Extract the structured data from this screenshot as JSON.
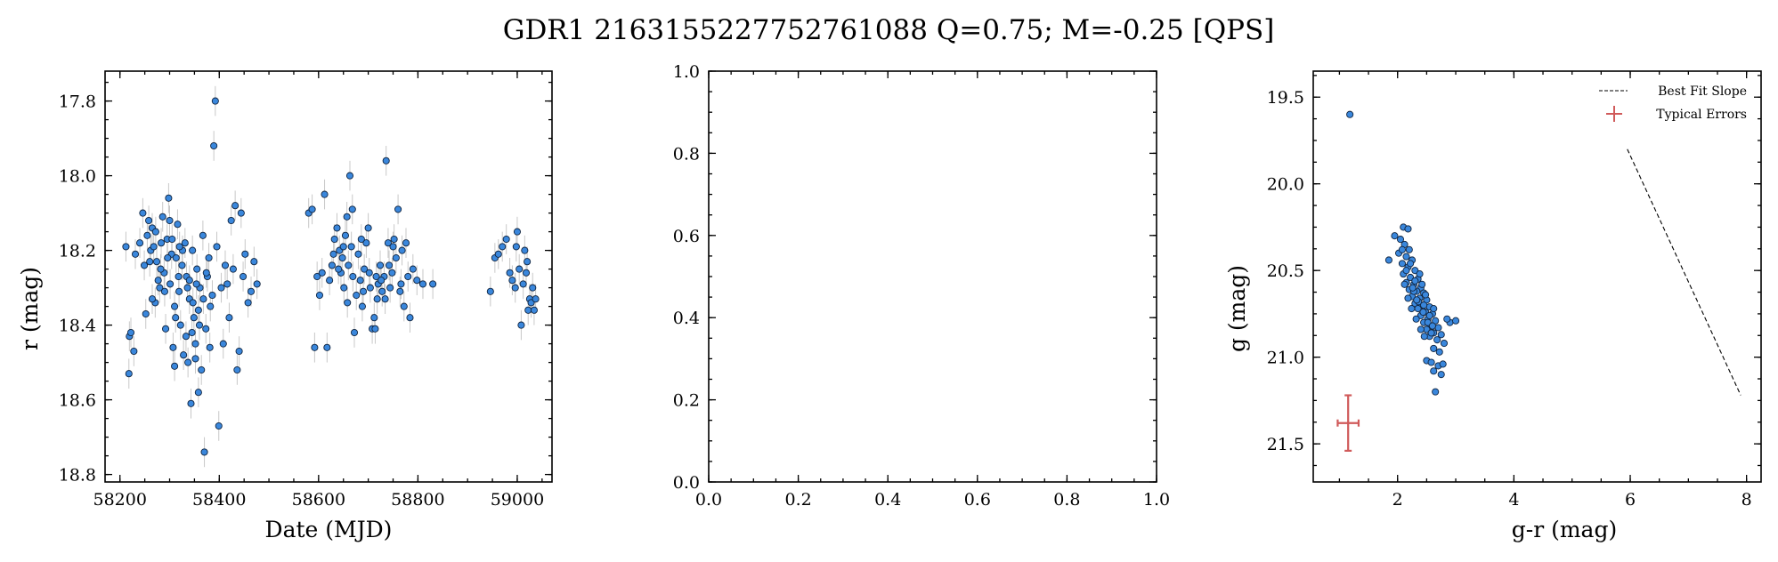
{
  "figure": {
    "title": "GDR1 2163155227752761088  Q=0.75; M=-0.25 [QPS]"
  },
  "colors": {
    "point_fill": "#3a87dc",
    "point_edge": "#10243f",
    "errorbar": "#c8c8c8",
    "typical_error": "#d05a5a"
  },
  "chart_data": [
    {
      "type": "scatter",
      "name": "lightcurve",
      "xlabel": "Date (MJD)",
      "ylabel": "r (mag)",
      "xlim": [
        58170,
        59070
      ],
      "ylim": [
        18.82,
        17.72
      ],
      "y_inverted": true,
      "xticks": [
        58200,
        58400,
        58600,
        58800,
        59000
      ],
      "xtick_labels": [
        "58200",
        "58400",
        "58600",
        "58800",
        "59000"
      ],
      "yticks": [
        17.8,
        18.0,
        18.2,
        18.4,
        18.6,
        18.8
      ],
      "ytick_labels": [
        "17.8",
        "18.0",
        "18.2",
        "18.4",
        "18.6",
        "18.8"
      ],
      "point_error": 0.04,
      "points": [
        [
          58212,
          18.19
        ],
        [
          58219,
          18.43
        ],
        [
          58218,
          18.53
        ],
        [
          58222,
          18.42
        ],
        [
          58228,
          18.47
        ],
        [
          58231,
          18.21
        ],
        [
          58240,
          18.18
        ],
        [
          58246,
          18.1
        ],
        [
          58249,
          18.24
        ],
        [
          58252,
          18.37
        ],
        [
          58255,
          18.16
        ],
        [
          58258,
          18.12
        ],
        [
          58262,
          18.2
        ],
        [
          58265,
          18.14
        ],
        [
          58268,
          18.19
        ],
        [
          58271,
          18.34
        ],
        [
          58274,
          18.23
        ],
        [
          58277,
          18.28
        ],
        [
          58280,
          18.3
        ],
        [
          58283,
          18.18
        ],
        [
          58286,
          18.11
        ],
        [
          58289,
          18.26
        ],
        [
          58292,
          18.41
        ],
        [
          58295,
          18.17
        ],
        [
          58298,
          18.06
        ],
        [
          58301,
          18.29
        ],
        [
          58304,
          18.21
        ],
        [
          58307,
          18.46
        ],
        [
          58310,
          18.35
        ],
        [
          58313,
          18.22
        ],
        [
          58316,
          18.13
        ],
        [
          58319,
          18.31
        ],
        [
          58322,
          18.4
        ],
        [
          58325,
          18.24
        ],
        [
          58328,
          18.48
        ],
        [
          58331,
          18.18
        ],
        [
          58334,
          18.27
        ],
        [
          58337,
          18.5
        ],
        [
          58340,
          18.33
        ],
        [
          58343,
          18.61
        ],
        [
          58346,
          18.2
        ],
        [
          58349,
          18.38
        ],
        [
          58352,
          18.45
        ],
        [
          58355,
          18.25
        ],
        [
          58358,
          18.58
        ],
        [
          58361,
          18.3
        ],
        [
          58364,
          18.52
        ],
        [
          58367,
          18.16
        ],
        [
          58370,
          18.74
        ],
        [
          58373,
          18.41
        ],
        [
          58376,
          18.27
        ],
        [
          58379,
          18.22
        ],
        [
          58382,
          18.35
        ],
        [
          58386,
          18.32
        ],
        [
          58389,
          17.92
        ],
        [
          58392,
          17.8
        ],
        [
          58395,
          18.19
        ],
        [
          58399,
          18.67
        ],
        [
          58404,
          18.3
        ],
        [
          58408,
          18.45
        ],
        [
          58412,
          18.24
        ],
        [
          58416,
          18.29
        ],
        [
          58420,
          18.38
        ],
        [
          58424,
          18.12
        ],
        [
          58428,
          18.25
        ],
        [
          58432,
          18.08
        ],
        [
          58436,
          18.52
        ],
        [
          58440,
          18.47
        ],
        [
          58444,
          18.1
        ],
        [
          58448,
          18.27
        ],
        [
          58452,
          18.21
        ],
        [
          58458,
          18.34
        ],
        [
          58464,
          18.31
        ],
        [
          58470,
          18.23
        ],
        [
          58476,
          18.29
        ],
        [
          58260,
          18.23
        ],
        [
          58265,
          18.33
        ],
        [
          58272,
          18.15
        ],
        [
          58282,
          18.25
        ],
        [
          58290,
          18.31
        ],
        [
          58296,
          18.22
        ],
        [
          58305,
          18.17
        ],
        [
          58312,
          18.38
        ],
        [
          58318,
          18.27
        ],
        [
          58326,
          18.2
        ],
        [
          58333,
          18.43
        ],
        [
          58340,
          18.28
        ],
        [
          58347,
          18.34
        ],
        [
          58354,
          18.29
        ],
        [
          58360,
          18.4
        ],
        [
          58368,
          18.33
        ],
        [
          58374,
          18.26
        ],
        [
          58381,
          18.46
        ],
        [
          58300,
          18.12
        ],
        [
          58320,
          18.19
        ],
        [
          58345,
          18.42
        ],
        [
          58358,
          18.36
        ],
        [
          58310,
          18.51
        ],
        [
          58352,
          18.49
        ],
        [
          58336,
          18.3
        ],
        [
          58580,
          18.1
        ],
        [
          58587,
          18.09
        ],
        [
          58592,
          18.46
        ],
        [
          58597,
          18.27
        ],
        [
          58602,
          18.32
        ],
        [
          58607,
          18.26
        ],
        [
          58612,
          18.05
        ],
        [
          58617,
          18.46
        ],
        [
          58622,
          18.28
        ],
        [
          58627,
          18.24
        ],
        [
          58632,
          18.17
        ],
        [
          58637,
          18.14
        ],
        [
          58642,
          18.2
        ],
        [
          58645,
          18.26
        ],
        [
          58648,
          18.22
        ],
        [
          58651,
          18.3
        ],
        [
          58654,
          18.16
        ],
        [
          58657,
          18.11
        ],
        [
          58660,
          18.24
        ],
        [
          58663,
          18.0
        ],
        [
          58666,
          18.19
        ],
        [
          58669,
          18.27
        ],
        [
          58672,
          18.42
        ],
        [
          58676,
          18.32
        ],
        [
          58680,
          18.21
        ],
        [
          58684,
          18.28
        ],
        [
          58688,
          18.35
        ],
        [
          58692,
          18.25
        ],
        [
          58696,
          18.18
        ],
        [
          58700,
          18.14
        ],
        [
          58704,
          18.3
        ],
        [
          58708,
          18.41
        ],
        [
          58712,
          18.38
        ],
        [
          58716,
          18.27
        ],
        [
          58720,
          18.29
        ],
        [
          58724,
          18.24
        ],
        [
          58728,
          18.31
        ],
        [
          58732,
          18.27
        ],
        [
          58736,
          17.96
        ],
        [
          58740,
          18.18
        ],
        [
          58744,
          18.3
        ],
        [
          58748,
          18.26
        ],
        [
          58752,
          18.17
        ],
        [
          58756,
          18.22
        ],
        [
          58760,
          18.09
        ],
        [
          58764,
          18.31
        ],
        [
          58768,
          18.2
        ],
        [
          58772,
          18.35
        ],
        [
          58776,
          18.18
        ],
        [
          58780,
          18.27
        ],
        [
          58784,
          18.38
        ],
        [
          58790,
          18.25
        ],
        [
          58798,
          18.28
        ],
        [
          58810,
          18.29
        ],
        [
          58830,
          18.29
        ],
        [
          58640,
          18.25
        ],
        [
          58650,
          18.19
        ],
        [
          58668,
          18.09
        ],
        [
          58690,
          18.31
        ],
        [
          58702,
          18.26
        ],
        [
          58718,
          18.33
        ],
        [
          58726,
          18.28
        ],
        [
          58742,
          18.24
        ],
        [
          58750,
          18.19
        ],
        [
          58766,
          18.29
        ],
        [
          58630,
          18.21
        ],
        [
          58658,
          18.34
        ],
        [
          58686,
          18.17
        ],
        [
          58714,
          18.41
        ],
        [
          58734,
          18.33
        ],
        [
          58946,
          18.31
        ],
        [
          58955,
          18.22
        ],
        [
          58962,
          18.21
        ],
        [
          58970,
          18.19
        ],
        [
          58978,
          18.17
        ],
        [
          58985,
          18.26
        ],
        [
          58990,
          18.28
        ],
        [
          58996,
          18.3
        ],
        [
          59000,
          18.15
        ],
        [
          59004,
          18.25
        ],
        [
          59008,
          18.4
        ],
        [
          59012,
          18.29
        ],
        [
          59015,
          18.2
        ],
        [
          59018,
          18.26
        ],
        [
          59022,
          18.36
        ],
        [
          59025,
          18.33
        ],
        [
          59028,
          18.34
        ],
        [
          59031,
          18.3
        ],
        [
          59034,
          18.36
        ],
        [
          59037,
          18.33
        ],
        [
          58998,
          18.19
        ],
        [
          59020,
          18.23
        ]
      ]
    },
    {
      "type": "scatter",
      "name": "empty",
      "xlim": [
        0,
        1
      ],
      "ylim": [
        0,
        1
      ],
      "xticks": [
        0.0,
        0.2,
        0.4,
        0.6,
        0.8,
        1.0
      ],
      "xtick_labels": [
        "0.0",
        "0.2",
        "0.4",
        "0.6",
        "0.8",
        "1.0"
      ],
      "yticks": [
        0.0,
        0.2,
        0.4,
        0.6,
        0.8,
        1.0
      ],
      "ytick_labels": [
        "0.0",
        "0.2",
        "0.4",
        "0.6",
        "0.8",
        "1.0"
      ],
      "points": []
    },
    {
      "type": "scatter",
      "name": "color-magnitude",
      "xlabel": "g-r (mag)",
      "ylabel": "g (mag)",
      "xlim": [
        0.55,
        8.25
      ],
      "ylim": [
        21.72,
        19.35
      ],
      "y_inverted": true,
      "xticks": [
        2,
        4,
        6,
        8
      ],
      "xtick_labels": [
        "2",
        "4",
        "6",
        "8"
      ],
      "yticks": [
        19.5,
        20.0,
        20.5,
        21.0,
        21.5
      ],
      "ytick_labels": [
        "19.5",
        "20.0",
        "20.5",
        "21.0",
        "21.5"
      ],
      "legend": {
        "location": "top-right",
        "entries": [
          "Best Fit Slope",
          "Typical Errors"
        ]
      },
      "best_fit_line": [
        [
          5.95,
          19.8
        ],
        [
          7.9,
          21.22
        ]
      ],
      "typical_error": {
        "x": 1.15,
        "y": 21.38,
        "xerr": 0.18,
        "yerr": 0.16
      },
      "points": [
        [
          1.18,
          19.6
        ],
        [
          2.1,
          20.25
        ],
        [
          2.18,
          20.26
        ],
        [
          2.05,
          20.32
        ],
        [
          2.12,
          20.35
        ],
        [
          2.2,
          20.38
        ],
        [
          1.95,
          20.3
        ],
        [
          2.02,
          20.4
        ],
        [
          2.15,
          20.42
        ],
        [
          2.25,
          20.44
        ],
        [
          1.85,
          20.44
        ],
        [
          2.08,
          20.46
        ],
        [
          2.18,
          20.48
        ],
        [
          2.3,
          20.5
        ],
        [
          2.1,
          20.52
        ],
        [
          2.22,
          20.54
        ],
        [
          2.35,
          20.55
        ],
        [
          2.15,
          20.57
        ],
        [
          2.28,
          20.58
        ],
        [
          2.4,
          20.6
        ],
        [
          2.2,
          20.61
        ],
        [
          2.33,
          20.62
        ],
        [
          2.45,
          20.63
        ],
        [
          2.25,
          20.65
        ],
        [
          2.38,
          20.66
        ],
        [
          2.5,
          20.67
        ],
        [
          2.3,
          20.69
        ],
        [
          2.42,
          20.7
        ],
        [
          2.55,
          20.71
        ],
        [
          2.35,
          20.72
        ],
        [
          2.48,
          20.74
        ],
        [
          2.6,
          20.75
        ],
        [
          2.4,
          20.76
        ],
        [
          2.52,
          20.78
        ],
        [
          2.65,
          20.79
        ],
        [
          2.45,
          20.8
        ],
        [
          2.58,
          20.82
        ],
        [
          2.7,
          20.83
        ],
        [
          2.5,
          20.84
        ],
        [
          2.62,
          20.86
        ],
        [
          2.75,
          20.87
        ],
        [
          2.55,
          20.88
        ],
        [
          2.68,
          20.9
        ],
        [
          2.8,
          20.92
        ],
        [
          2.9,
          20.8
        ],
        [
          3.0,
          20.79
        ],
        [
          2.85,
          20.78
        ],
        [
          2.62,
          20.95
        ],
        [
          2.72,
          20.97
        ],
        [
          2.5,
          21.02
        ],
        [
          2.58,
          21.03
        ],
        [
          2.7,
          21.05
        ],
        [
          2.78,
          21.04
        ],
        [
          2.62,
          21.08
        ],
        [
          2.75,
          21.1
        ],
        [
          2.65,
          21.2
        ],
        [
          2.12,
          20.58
        ],
        [
          2.28,
          20.62
        ],
        [
          2.18,
          20.66
        ],
        [
          2.36,
          20.68
        ],
        [
          2.24,
          20.72
        ],
        [
          2.44,
          20.74
        ],
        [
          2.32,
          20.78
        ],
        [
          2.52,
          20.8
        ],
        [
          2.4,
          20.84
        ],
        [
          2.58,
          20.86
        ],
        [
          2.46,
          20.88
        ],
        [
          2.15,
          20.5
        ],
        [
          2.22,
          20.46
        ],
        [
          2.08,
          20.38
        ],
        [
          2.3,
          20.56
        ],
        [
          2.38,
          20.52
        ],
        [
          2.45,
          20.7
        ],
        [
          2.26,
          20.6
        ],
        [
          2.33,
          20.67
        ],
        [
          2.55,
          20.76
        ],
        [
          2.62,
          20.72
        ],
        [
          2.48,
          20.64
        ],
        [
          2.42,
          20.58
        ],
        [
          2.6,
          20.82
        ]
      ]
    }
  ]
}
